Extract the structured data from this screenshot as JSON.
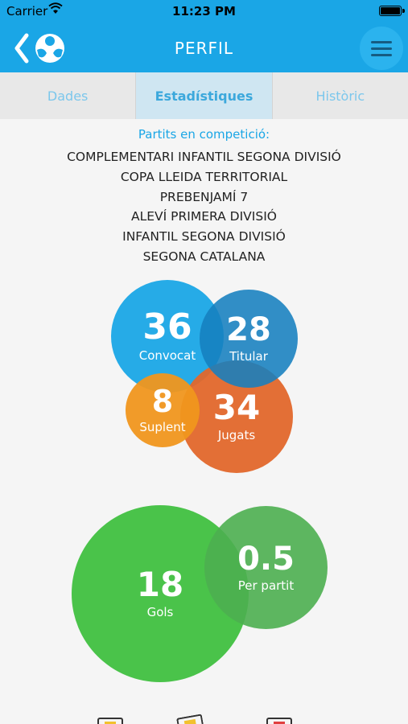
{
  "status_bar": {
    "carrier": "Carrier",
    "time": "11:23 PM"
  },
  "nav": {
    "title": "PERFIL"
  },
  "tabs": [
    {
      "label": "Dades",
      "active": false
    },
    {
      "label": "Estadístiques",
      "active": true
    },
    {
      "label": "Històric",
      "active": false
    }
  ],
  "competitions": {
    "header": "Partits en competició:",
    "items": [
      "COMPLEMENTARI INFANTIL SEGONA DIVISIÓ",
      "COPA LLEIDA TERRITORIAL",
      "PREBENJAMÍ 7",
      "ALEVÍ PRIMERA DIVISIÓ",
      "INFANTIL SEGONA DIVISIÓ",
      "SEGONA CATALANA"
    ]
  },
  "stats": {
    "convocat": {
      "value": "36",
      "label": "Convocat",
      "color": "#1aa6e6"
    },
    "titular": {
      "value": "28",
      "label": "Titular",
      "color": "#1680bf"
    },
    "suplent": {
      "value": "8",
      "label": "Suplent",
      "color": "#f0961e"
    },
    "jugats": {
      "value": "34",
      "label": "Jugats",
      "color": "#e2672b"
    },
    "gols": {
      "value": "18",
      "label": "Gols",
      "color": "#40c040"
    },
    "per_partit": {
      "value": "0.5",
      "label": "Per partit",
      "color": "#4caf50"
    }
  },
  "colors": {
    "accent": "#1aa6e6"
  }
}
